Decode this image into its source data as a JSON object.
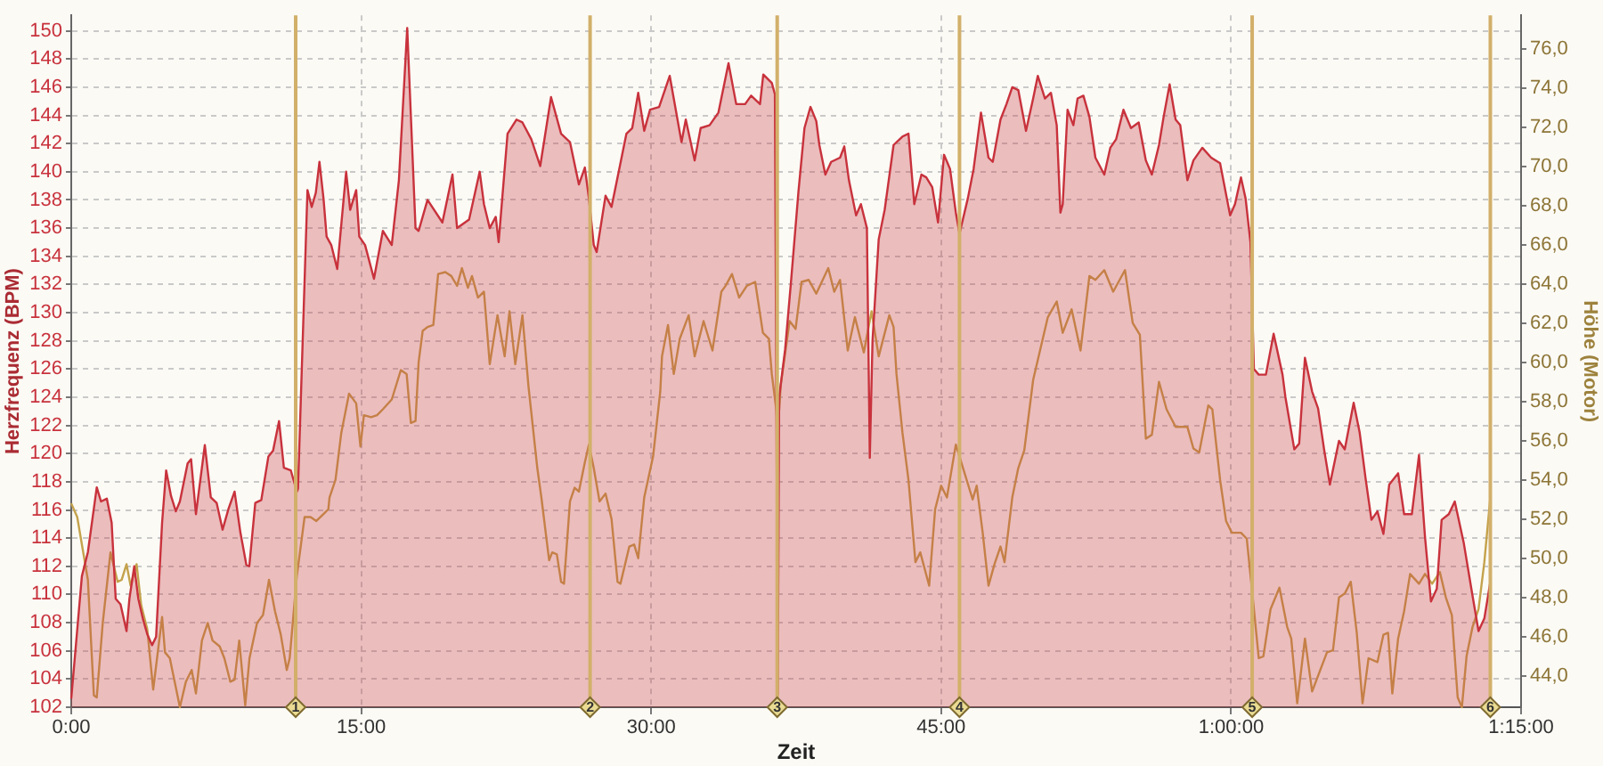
{
  "chart_data": {
    "type": "area",
    "xlabel": "Zeit",
    "ylabel": "Herzfrequenz (BPM)",
    "y2label": "Höhe (Motor)",
    "xlim": [
      0,
      75
    ],
    "xticks": [
      {
        "value": 0,
        "label": "0:00"
      },
      {
        "value": 15,
        "label": "15:00"
      },
      {
        "value": 30,
        "label": "30:00"
      },
      {
        "value": 45,
        "label": "45:00"
      },
      {
        "value": 60,
        "label": "1:00:00"
      },
      {
        "value": 75,
        "label": "1:15:00"
      }
    ],
    "ylim": [
      102,
      151.1
    ],
    "yticks": [
      102,
      104,
      106,
      108,
      110,
      112,
      114,
      116,
      118,
      120,
      122,
      124,
      126,
      128,
      130,
      132,
      134,
      136,
      138,
      140,
      142,
      144,
      146,
      148,
      150
    ],
    "y2lim": [
      42.4,
      77.7
    ],
    "y2ticks": [
      {
        "value": 44,
        "label": "44,0"
      },
      {
        "value": 46,
        "label": "46,0"
      },
      {
        "value": 48,
        "label": "48,0"
      },
      {
        "value": 50,
        "label": "50,0"
      },
      {
        "value": 52,
        "label": "52,0"
      },
      {
        "value": 54,
        "label": "54,0"
      },
      {
        "value": 56,
        "label": "56,0"
      },
      {
        "value": 58,
        "label": "58,0"
      },
      {
        "value": 60,
        "label": "60,0"
      },
      {
        "value": 62,
        "label": "62,0"
      },
      {
        "value": 64,
        "label": "64,0"
      },
      {
        "value": 66,
        "label": "66,0"
      },
      {
        "value": 68,
        "label": "68,0"
      },
      {
        "value": 70,
        "label": "70,0"
      },
      {
        "value": 72,
        "label": "72,0"
      },
      {
        "value": 74,
        "label": "74,0"
      },
      {
        "value": 76,
        "label": "76,0"
      }
    ],
    "grid": true,
    "series": [
      {
        "color": "#c8323c",
        "x": [
          0,
          0.55,
          0.86,
          1.32,
          1.54,
          1.84,
          2.09,
          2.3,
          2.55,
          2.86,
          3.01,
          3.26,
          3.47,
          3.72,
          3.93,
          4.18,
          4.39,
          4.7,
          4.91,
          5.16,
          5.41,
          5.62,
          6.02,
          6.2,
          6.45,
          6.91,
          7.22,
          7.52,
          7.83,
          8.14,
          8.45,
          8.75,
          9.06,
          9.21,
          9.52,
          9.83,
          10.2,
          10.44,
          10.75,
          11,
          11.36,
          11.67,
          11.73,
          12.22,
          12.44,
          12.65,
          12.84,
          13.05,
          13.21,
          13.45,
          13.76,
          14.22,
          14.43,
          14.74,
          14.9,
          15.2,
          15.66,
          16.12,
          16.58,
          16.95,
          17.38,
          17.81,
          17.97,
          18.43,
          19.2,
          19.72,
          19.96,
          20.58,
          21.13,
          21.35,
          21.65,
          21.96,
          22.11,
          22.57,
          23.03,
          23.34,
          23.8,
          24.26,
          24.82,
          25.34,
          25.8,
          26.26,
          26.57,
          26.78,
          27.03,
          27.18,
          27.64,
          27.95,
          28.41,
          28.72,
          29.02,
          29.33,
          29.64,
          29.94,
          30.41,
          30.96,
          31.57,
          31.79,
          32.25,
          32.56,
          33.02,
          33.48,
          34,
          34.4,
          34.86,
          35.17,
          35.63,
          35.8,
          36.24,
          36.4,
          36.55,
          36.62,
          36.93,
          37.24,
          37.62,
          37.93,
          38.24,
          38.54,
          38.7,
          39.01,
          39.31,
          39.77,
          39.99,
          40.23,
          40.6,
          40.85,
          41.16,
          41.31,
          41.45,
          41.77,
          42.08,
          42.54,
          43,
          43.31,
          43.61,
          43.98,
          44.23,
          44.54,
          44.84,
          45.15,
          45.46,
          45.76,
          45.95,
          46.38,
          46.68,
          47.06,
          47.45,
          47.67,
          48.07,
          48.38,
          48.68,
          48.99,
          49.39,
          49.76,
          50,
          50.37,
          50.68,
          50.98,
          51.17,
          51.29,
          51.54,
          51.84,
          52.06,
          52.36,
          52.67,
          52.98,
          53.44,
          53.75,
          54.05,
          54.43,
          54.82,
          55.22,
          55.59,
          55.9,
          56.27,
          56.51,
          56.82,
          57.13,
          57.37,
          57.74,
          58.05,
          58.51,
          58.97,
          59.43,
          59.95,
          60.2,
          60.51,
          60.75,
          61,
          61.18,
          61.43,
          61.8,
          62.2,
          62.66,
          62.81,
          63.27,
          63.52,
          63.82,
          64.19,
          64.5,
          64.81,
          65.11,
          65.58,
          65.88,
          66.34,
          66.65,
          66.96,
          67.26,
          67.57,
          67.88,
          68.18,
          68.64,
          68.95,
          69.35,
          69.72,
          70.03,
          70.34,
          70.64,
          70.89,
          71.26,
          71.57,
          72.03,
          72.49,
          72.8,
          73.1,
          73.41
        ],
        "values": [
          102.6,
          111.3,
          113,
          117.6,
          116.6,
          116.8,
          115.1,
          109.7,
          109.3,
          107.4,
          109.7,
          112,
          109.7,
          108.2,
          107.2,
          106.4,
          107,
          115.1,
          118.8,
          117,
          115.9,
          116.6,
          119.3,
          119.6,
          115.7,
          120.6,
          116.9,
          116.5,
          114.6,
          116.1,
          117.3,
          114.4,
          112.1,
          112,
          116.5,
          116.7,
          119.8,
          120.2,
          122.3,
          119,
          118.8,
          117.3,
          117.5,
          138.7,
          137.5,
          138.5,
          140.7,
          138.1,
          135.4,
          134.8,
          133.1,
          140,
          137.3,
          138.7,
          135.4,
          134.8,
          132.4,
          135.8,
          134.8,
          139.4,
          150.2,
          136,
          135.8,
          138,
          136.4,
          139.8,
          136,
          136.6,
          140,
          137.7,
          136,
          136.8,
          135,
          142.7,
          143.7,
          143.5,
          142.3,
          140.4,
          145.3,
          142.7,
          142.1,
          139.1,
          140.3,
          138.1,
          134.8,
          134.3,
          138.3,
          137.5,
          140.6,
          142.7,
          143.1,
          145.6,
          142.9,
          144.4,
          144.6,
          146.8,
          142.1,
          143.7,
          140.8,
          143.1,
          143.3,
          144.2,
          147.7,
          144.8,
          144.8,
          145.4,
          144.8,
          146.9,
          146.3,
          145.5,
          102.9,
          124,
          127.4,
          132.3,
          138.6,
          143.1,
          144.6,
          143.6,
          141.9,
          139.8,
          140.7,
          141,
          141.8,
          139.4,
          136.9,
          137.7,
          136,
          119.7,
          128,
          135.2,
          137.3,
          141.9,
          142.5,
          142.7,
          137.7,
          139.8,
          139.6,
          138.9,
          136.4,
          141.2,
          140.2,
          137.1,
          135.6,
          138.1,
          140.2,
          144.2,
          141,
          140.7,
          143.7,
          144.8,
          146,
          145.8,
          142.9,
          145.2,
          146.8,
          145.2,
          145.6,
          143.3,
          137.1,
          137.7,
          144.4,
          143.3,
          145.2,
          145.4,
          143.9,
          141,
          139.8,
          141.7,
          142.3,
          144.4,
          143.1,
          143.5,
          140.8,
          139.8,
          141.9,
          143.9,
          146.2,
          143.7,
          143.3,
          139.4,
          140.8,
          141.7,
          141,
          140.6,
          136.9,
          137.7,
          139.6,
          138.1,
          135,
          126,
          125.6,
          125.6,
          128.5,
          125.6,
          124,
          120.3,
          120.7,
          126.8,
          124.4,
          123.2,
          120.3,
          117.8,
          120.9,
          120.3,
          123.6,
          121.5,
          118.2,
          115.3,
          115.9,
          114.3,
          117.8,
          118.6,
          115.7,
          115.7,
          119.9,
          114.1,
          109.5,
          110.4,
          115.3,
          115.7,
          116.6,
          113.7,
          109.9,
          107.4,
          108.3,
          110.9
        ]
      },
      {
        "type": "line",
        "axis": "y2",
        "color": "#c4a24c",
        "x": [
          0,
          0.31,
          0.86,
          1.17,
          1.32,
          1.63,
          2.03,
          2.4,
          2.61,
          2.86,
          3.07,
          3.38,
          3.62,
          3.93,
          4.24,
          4.7,
          4.85,
          5.1,
          5.62,
          5.93,
          6.23,
          6.45,
          6.76,
          7.06,
          7.31,
          7.68,
          7.92,
          8.23,
          8.45,
          8.69,
          9,
          9.22,
          9.61,
          9.92,
          10.23,
          10.54,
          10.84,
          11.15,
          11.3,
          11.67,
          12.07,
          12.38,
          12.68,
          12.99,
          13.3,
          13.36,
          13.67,
          13.97,
          14.37,
          14.74,
          14.96,
          15.14,
          15.51,
          15.82,
          16.12,
          16.58,
          17.05,
          17.35,
          17.57,
          17.81,
          17.97,
          18.18,
          18.43,
          18.73,
          18.98,
          19.35,
          19.66,
          19.96,
          20.21,
          20.52,
          20.73,
          21.04,
          21.35,
          21.65,
          22.05,
          22.42,
          22.67,
          22.97,
          23.34,
          23.65,
          24.11,
          24.32,
          24.72,
          24.88,
          25.12,
          25.34,
          25.49,
          25.8,
          26.04,
          26.26,
          26.57,
          26.78,
          27.03,
          27.33,
          27.64,
          27.95,
          28.26,
          28.41,
          28.87,
          29.12,
          29.33,
          29.64,
          30.1,
          30.47,
          30.56,
          30.87,
          31.17,
          31.48,
          31.94,
          32.25,
          32.71,
          33.17,
          33.63,
          33.85,
          34.18,
          34.55,
          34.95,
          35.38,
          35.78,
          36.09,
          36.24,
          36.47,
          36.55,
          36.7,
          37.16,
          37.47,
          37.78,
          38.15,
          38.54,
          39.16,
          39.47,
          39.77,
          40.17,
          40.54,
          41,
          41.4,
          41.77,
          42.32,
          42.54,
          42.69,
          43,
          43.31,
          43.67,
          43.92,
          44.38,
          44.69,
          45,
          45.3,
          45.76,
          46.07,
          46.63,
          46.84,
          47.15,
          47.45,
          47.76,
          48.07,
          48.28,
          48.68,
          48.99,
          49.3,
          49.76,
          50.52,
          50.98,
          51.29,
          51.75,
          52.21,
          52.67,
          52.98,
          53.44,
          53.9,
          54.51,
          54.91,
          55.28,
          55.59,
          55.9,
          56.27,
          56.66,
          57.13,
          57.74,
          58.05,
          58.35,
          58.82,
          59.03,
          59.43,
          59.74,
          60.04,
          60.51,
          60.81,
          61.12,
          61.43,
          61.67,
          62.04,
          62.5,
          62.9,
          63.11,
          63.42,
          63.82,
          64.19,
          64.96,
          65.27,
          65.58,
          65.88,
          66.19,
          66.5,
          66.8,
          67.11,
          67.57,
          67.88,
          68.12,
          68.34,
          68.64,
          68.95,
          69.26,
          69.72,
          70.03,
          70.4,
          70.8,
          71.11,
          71.42,
          71.72,
          71.94,
          72.18,
          72.49,
          72.8,
          73.1,
          73.41
        ],
        "values": [
          52.8,
          52.1,
          48.9,
          43,
          42.9,
          46.7,
          50.3,
          48.8,
          48.9,
          49.7,
          48.6,
          49.7,
          47.6,
          46.4,
          43.3,
          47,
          45.2,
          44.9,
          42.4,
          43.7,
          44.3,
          43.1,
          45.8,
          46.7,
          45.8,
          45.5,
          44.9,
          43.7,
          43.8,
          45.8,
          42.5,
          44.9,
          46.7,
          47.1,
          48.9,
          47.3,
          46.1,
          44.3,
          44.9,
          49.1,
          52.1,
          52.1,
          51.9,
          52.2,
          52.5,
          53.1,
          54,
          56.4,
          58.4,
          57.9,
          55.7,
          57.3,
          57.2,
          57.3,
          57.6,
          58.1,
          59.6,
          59.4,
          56.9,
          57,
          60,
          61.6,
          61.8,
          61.9,
          64.5,
          64.6,
          64.4,
          63.9,
          64.8,
          63.8,
          64.4,
          63.3,
          63.6,
          59.9,
          62.4,
          60.3,
          62.6,
          59.9,
          62.4,
          58.8,
          54.6,
          53.1,
          49.9,
          50.3,
          50.2,
          48.8,
          48.7,
          52.9,
          53.6,
          53.4,
          54.9,
          55.8,
          54.6,
          52.9,
          53.3,
          52,
          48.8,
          48.7,
          50.6,
          50.7,
          50,
          53.1,
          55.2,
          58.5,
          60.3,
          61.9,
          59.4,
          61.2,
          62.4,
          60.3,
          62.1,
          60.6,
          63.6,
          63.9,
          64.5,
          63.3,
          63.9,
          64.1,
          61.5,
          61.2,
          59.4,
          57.6,
          56.4,
          58.8,
          62.1,
          61.7,
          64.1,
          64.2,
          63.5,
          64.8,
          63.6,
          64.2,
          60.6,
          62.3,
          60.5,
          62.6,
          60.3,
          62.4,
          61.8,
          59.4,
          56.4,
          54,
          49.8,
          50.3,
          48.6,
          52.5,
          53.7,
          53.1,
          55.8,
          54.8,
          53,
          53.7,
          51.3,
          48.6,
          49.7,
          50.6,
          49.8,
          53.1,
          54.6,
          55.5,
          59.1,
          62.3,
          63.1,
          61.5,
          62.7,
          60.6,
          64.4,
          64.2,
          64.7,
          63.6,
          64.7,
          62,
          61.4,
          56.1,
          56.3,
          59,
          57.6,
          56.7,
          56.7,
          55.6,
          55.4,
          57.8,
          57.6,
          54,
          51.9,
          51.3,
          51.3,
          51,
          48,
          44.9,
          45,
          47.4,
          48.5,
          46.5,
          45.9,
          42.6,
          45.9,
          43.2,
          45.2,
          45.3,
          48,
          48.2,
          48.8,
          46.2,
          42.6,
          44.9,
          44.7,
          46.1,
          46.2,
          43.1,
          45.9,
          47.3,
          49.2,
          48.7,
          49.2,
          48.7,
          49.3,
          48,
          47.1,
          42.9,
          42.4,
          45,
          46.5,
          47.4,
          49.8,
          53.1
        ]
      }
    ],
    "ref_lines": [
      {
        "axis": "x",
        "value": 11.61,
        "color": "#d2b06a"
      },
      {
        "axis": "x",
        "value": 26.84,
        "color": "#d2b06a"
      },
      {
        "axis": "x",
        "value": 36.52,
        "color": "#d2b06a"
      },
      {
        "axis": "x",
        "value": 45.95,
        "color": "#d2b06a"
      },
      {
        "axis": "x",
        "value": 61.09,
        "color": "#d2b06a"
      },
      {
        "axis": "x",
        "value": 73.41,
        "color": "#d2b06a"
      }
    ],
    "annotations": [
      {
        "text": "1",
        "x": 11.61,
        "y": 102
      },
      {
        "text": "2",
        "x": 26.84,
        "y": 102
      },
      {
        "text": "3",
        "x": 36.52,
        "y": 102
      },
      {
        "text": "4",
        "x": 45.95,
        "y": 102
      },
      {
        "text": "5",
        "x": 61.09,
        "y": 102
      },
      {
        "text": "6",
        "x": 73.41,
        "y": 102
      }
    ]
  }
}
